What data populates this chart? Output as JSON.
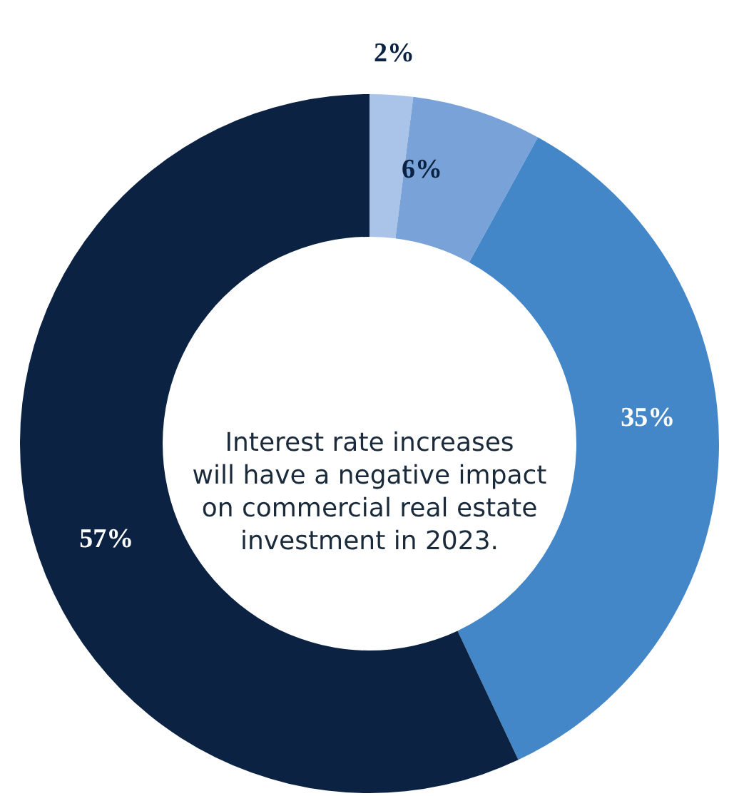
{
  "chart_data": {
    "type": "donut",
    "title": "Interest rate increases will have a negative impact on commercial real estate investment in 2023.",
    "categories": [
      null,
      null,
      null,
      null
    ],
    "values": [
      2,
      6,
      35,
      57
    ],
    "colors": [
      "#a9c4e8",
      "#78a2d8",
      "#4487c8",
      "#0b2242"
    ],
    "value_labels": [
      "2%",
      "6%",
      "35%",
      "57%"
    ]
  }
}
